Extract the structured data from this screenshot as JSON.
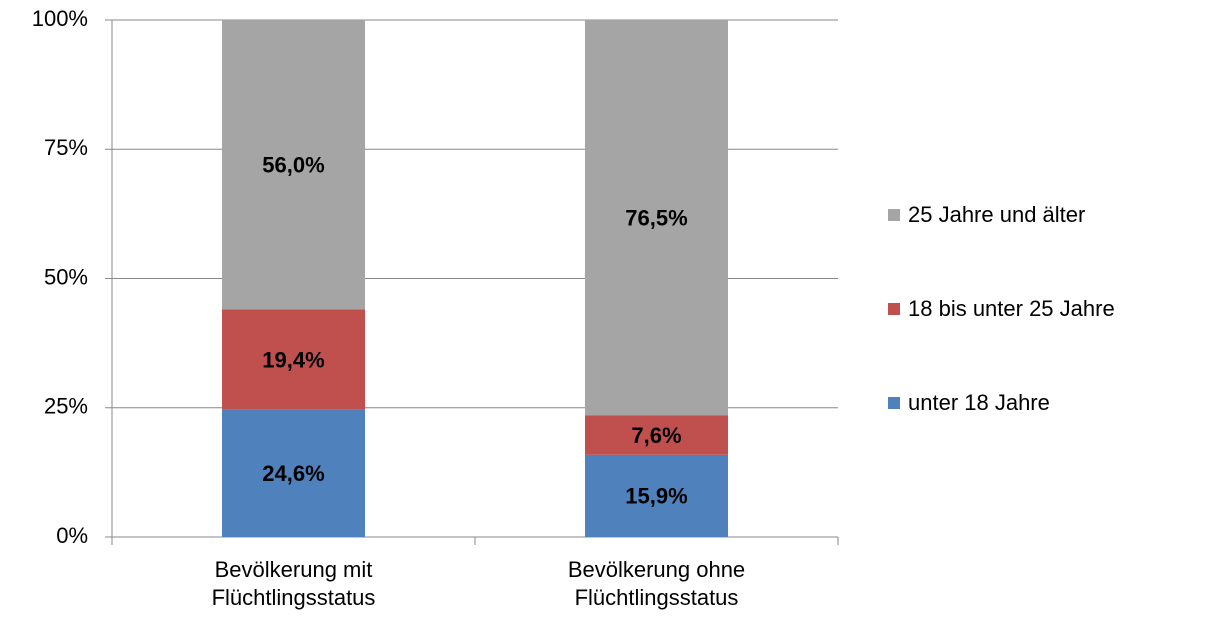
{
  "chart_data": {
    "type": "stacked_bar",
    "categories": [
      "Bevölkerung mit Flüchtlingsstatus",
      "Bevölkerung ohne Flüchtlingsstatus"
    ],
    "series": [
      {
        "name": "unter 18 Jahre",
        "color": "#4f81bd",
        "values": [
          24.6,
          15.9
        ],
        "value_labels": [
          "24,6%",
          "15,9%"
        ]
      },
      {
        "name": "18 bis unter 25 Jahre",
        "color": "#c0504d",
        "values": [
          19.4,
          7.6
        ],
        "value_labels": [
          "19,4%",
          "7,6%"
        ]
      },
      {
        "name": "25 Jahre und älter",
        "color": "#a5a5a5",
        "values": [
          56.0,
          76.5
        ],
        "value_labels": [
          "56,0%",
          "76,5%"
        ]
      }
    ],
    "ylim": [
      0,
      100
    ],
    "yticks": [
      {
        "value": 0,
        "label": "0%"
      },
      {
        "value": 25,
        "label": "25%"
      },
      {
        "value": 50,
        "label": "50%"
      },
      {
        "value": 75,
        "label": "75%"
      },
      {
        "value": 100,
        "label": "100%"
      }
    ],
    "grid": true,
    "legend": "right"
  }
}
